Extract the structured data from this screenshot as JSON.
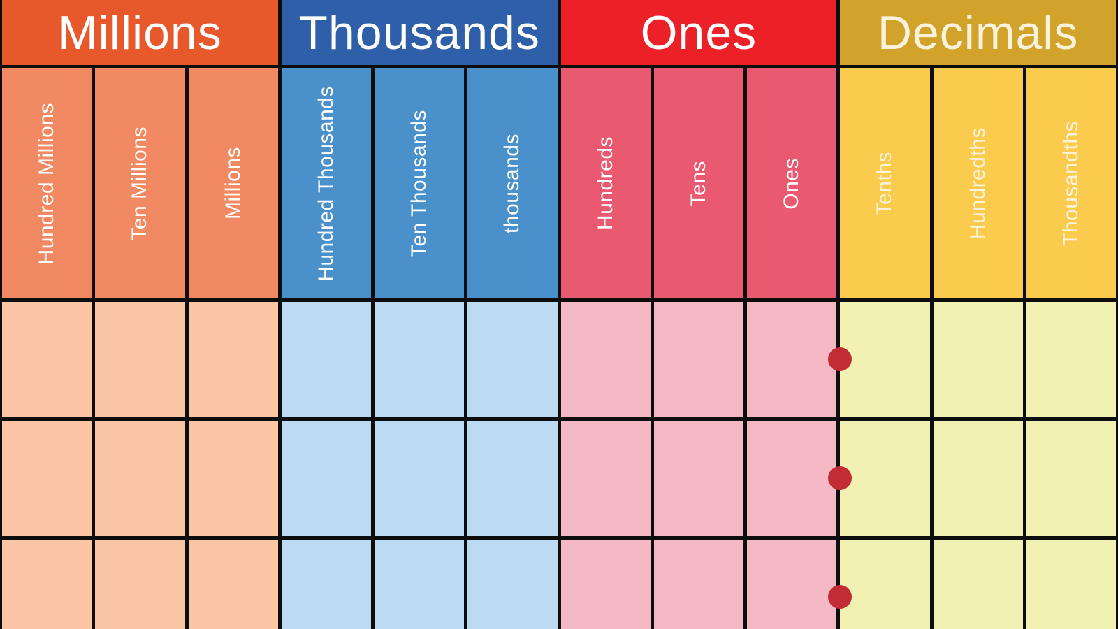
{
  "groups": [
    {
      "label": "Millions",
      "columns": [
        "Hundred Millions",
        "Ten Millions",
        "Millions"
      ]
    },
    {
      "label": "Thousands",
      "columns": [
        "Hundred Thousands",
        "Ten Thousands",
        "thousands"
      ]
    },
    {
      "label": "Ones",
      "columns": [
        "Hundreds",
        "Tens",
        "Ones"
      ]
    },
    {
      "label": "Decimals",
      "columns": [
        "Tenths",
        "Hundredths",
        "Thousandths"
      ]
    }
  ],
  "body": {
    "empty_rows": 3,
    "decimal_point_markers": 3,
    "decimal_point_position": "between Ones and Tenths columns"
  },
  "colors": {
    "millions-header": "#E7582A",
    "millions-sub": "#F18A63",
    "millions-cell": "#FAC6A6",
    "thousands-header": "#2F5FA8",
    "thousands-sub": "#4A90CA",
    "thousands-cell": "#BCDAF2",
    "ones-header": "#EC2027",
    "ones-sub": "#E95A70",
    "ones-cell": "#F5B9C6",
    "decimals-header": "#D2A32B",
    "decimals-sub": "#FACB4D",
    "decimals-cell": "#F0F1B2",
    "decimals-text": "#FBF2DC",
    "header-text": "#FFFFFF",
    "decimal-dot": "#C22D35",
    "grid-line": "#0D0D0D"
  }
}
